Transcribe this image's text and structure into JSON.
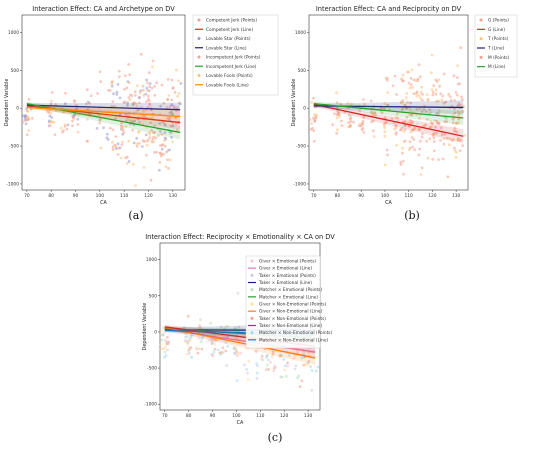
{
  "chart_data": [
    {
      "id": "a",
      "type": "scatter",
      "caption": "(a)",
      "title": "Interaction Effect: CA and Archetype on DV",
      "xlabel": "CA",
      "ylabel": "Dependent Variable",
      "xlim": [
        68,
        135
      ],
      "ylim": [
        -1080,
        1230
      ],
      "xticks": [
        70,
        80,
        90,
        100,
        110,
        120,
        130
      ],
      "yticks": [
        -1000,
        -500,
        0,
        500,
        1000
      ],
      "legend_position": "outside-right",
      "legend": [
        {
          "label": "Competent Jerk (Points)",
          "kind": "points",
          "color": "#f4a08c"
        },
        {
          "label": "Competent Jerk (Line)",
          "kind": "line",
          "color": "#d62728"
        },
        {
          "label": "Lovable Star (Points)",
          "kind": "points",
          "color": "#9999cc"
        },
        {
          "label": "Lovable Star (Line)",
          "kind": "line",
          "color": "#1f1f7a"
        },
        {
          "label": "Incompetent Jerk (Points)",
          "kind": "points",
          "color": "#f4a08c"
        },
        {
          "label": "Incompetent Jerk (Line)",
          "kind": "line",
          "color": "#2ca02c"
        },
        {
          "label": "Lovable Fools (Points)",
          "kind": "points",
          "color": "#ffc07a"
        },
        {
          "label": "Lovable Fools (Line)",
          "kind": "line",
          "color": "#ff8c00"
        }
      ],
      "lines": [
        {
          "name": "Competent Jerk",
          "color": "#d62728",
          "x": [
            70,
            133
          ],
          "y": [
            30,
            -190
          ]
        },
        {
          "name": "Lovable Star",
          "color": "#1f1f7a",
          "x": [
            70,
            133
          ],
          "y": [
            40,
            -20
          ]
        },
        {
          "name": "Incompetent Jerk",
          "color": "#2ca02c",
          "x": [
            70,
            133
          ],
          "y": [
            60,
            -320
          ]
        },
        {
          "name": "Lovable Fools",
          "color": "#ff8c00",
          "x": [
            70,
            133
          ],
          "y": [
            10,
            -110
          ]
        }
      ]
    },
    {
      "id": "b",
      "type": "scatter",
      "caption": "(b)",
      "title": "Interaction Effect: CA and Reciprocity on DV",
      "xlabel": "CA",
      "ylabel": "Dependent Variable",
      "xlim": [
        68,
        135
      ],
      "ylim": [
        -1080,
        1230
      ],
      "xticks": [
        70,
        80,
        90,
        100,
        110,
        120,
        130
      ],
      "yticks": [
        -1000,
        -500,
        0,
        500,
        1000
      ],
      "legend_position": "outside-right",
      "legend": [
        {
          "label": "G (Points)",
          "kind": "points",
          "color": "#f4a08c"
        },
        {
          "label": "G (Line)",
          "kind": "line",
          "color": "#d62728"
        },
        {
          "label": "T (Points)",
          "kind": "points",
          "color": "#ffc07a"
        },
        {
          "label": "T (Line)",
          "kind": "line",
          "color": "#1f1f7a"
        },
        {
          "label": "M (Points)",
          "kind": "points",
          "color": "#f4a08c"
        },
        {
          "label": "M (Line)",
          "kind": "line",
          "color": "#2ca02c"
        }
      ],
      "lines": [
        {
          "name": "G",
          "color": "#d62728",
          "x": [
            70,
            133
          ],
          "y": [
            50,
            -370
          ]
        },
        {
          "name": "T",
          "color": "#1f1f7a",
          "x": [
            70,
            133
          ],
          "y": [
            30,
            10
          ]
        },
        {
          "name": "M",
          "color": "#2ca02c",
          "x": [
            70,
            133
          ],
          "y": [
            60,
            -130
          ]
        }
      ]
    },
    {
      "id": "c",
      "type": "scatter",
      "caption": "(c)",
      "title": "Interaction Effect: Reciprocity × Emotionality × CA on DV",
      "xlabel": "CA",
      "ylabel": "Dependent Variable",
      "xlim": [
        68,
        135
      ],
      "ylim": [
        -1080,
        1230
      ],
      "xticks": [
        70,
        80,
        90,
        100,
        110,
        120,
        130
      ],
      "yticks": [
        -1000,
        -500,
        0,
        500,
        1000
      ],
      "legend_position": "upper-right",
      "legend": [
        {
          "label": "Giver × Emotional (Points)",
          "kind": "points",
          "color": "#ffbfd0"
        },
        {
          "label": "Giver × Emotional (Line)",
          "kind": "line",
          "color": "#e377c2"
        },
        {
          "label": "Taker × Emotional (Points)",
          "kind": "points",
          "color": "#c8c8e8"
        },
        {
          "label": "Taker × Emotional (Line)",
          "kind": "line",
          "color": "#1f1f7a"
        },
        {
          "label": "Matcher × Emotional (Points)",
          "kind": "points",
          "color": "#b8e0b8"
        },
        {
          "label": "Matcher × Emotional (Line)",
          "kind": "line",
          "color": "#2ca02c"
        },
        {
          "label": "Giver × Non-Emotional (Points)",
          "kind": "points",
          "color": "#ffd8a0"
        },
        {
          "label": "Giver × Non-Emotional (Line)",
          "kind": "line",
          "color": "#ff7f0e"
        },
        {
          "label": "Taker × Non-Emotional (Points)",
          "kind": "points",
          "color": "#f4a08c"
        },
        {
          "label": "Taker × Non-Emotional (Line)",
          "kind": "line",
          "color": "#d62728"
        },
        {
          "label": "Matcher × Non-Emotional (Points)",
          "kind": "points",
          "color": "#a0d8f0"
        },
        {
          "label": "Matcher × Non-Emotional (Line)",
          "kind": "line",
          "color": "#1f77b4"
        }
      ],
      "lines": [
        {
          "name": "Giver × Emotional",
          "color": "#e377c2",
          "x": [
            70,
            133
          ],
          "y": [
            40,
            -280
          ]
        },
        {
          "name": "Taker × Emotional",
          "color": "#1f1f7a",
          "x": [
            70,
            133
          ],
          "y": [
            30,
            20
          ]
        },
        {
          "name": "Matcher × Emotional",
          "color": "#2ca02c",
          "x": [
            70,
            133
          ],
          "y": [
            50,
            -90
          ]
        },
        {
          "name": "Giver × Non-Emotional",
          "color": "#ff7f0e",
          "x": [
            70,
            133
          ],
          "y": [
            60,
            -360
          ]
        },
        {
          "name": "Taker × Non-Emotional",
          "color": "#d62728",
          "x": [
            70,
            133
          ],
          "y": [
            70,
            -200
          ]
        },
        {
          "name": "Matcher × Non-Emotional",
          "color": "#1f77b4",
          "x": [
            70,
            133
          ],
          "y": [
            20,
            -40
          ]
        }
      ]
    }
  ]
}
